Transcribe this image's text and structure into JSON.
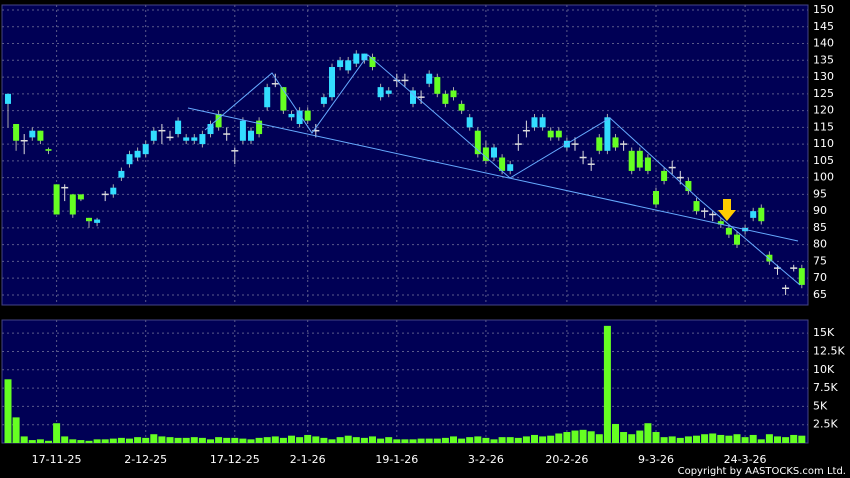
{
  "chart_data": [
    {
      "type": "candlestick",
      "open": [
        122,
        116,
        111,
        112,
        114,
        108.5,
        98,
        97,
        95,
        95,
        88,
        86.5,
        95,
        95,
        100,
        104,
        106,
        107,
        111,
        114,
        112,
        113,
        111,
        111,
        110,
        113,
        119,
        113,
        108,
        111,
        111,
        117,
        121,
        128,
        127,
        118,
        116,
        120,
        114,
        122,
        124,
        133,
        132,
        134,
        135,
        136,
        124,
        125,
        129,
        129,
        122,
        124,
        128,
        130,
        125,
        126,
        122,
        115,
        114,
        109,
        106,
        106,
        102,
        110,
        114,
        115,
        115,
        114,
        114,
        109,
        110,
        106,
        104,
        112,
        108,
        112,
        110,
        108,
        108,
        106,
        96,
        102,
        103,
        100,
        99,
        93,
        90,
        89,
        87,
        85,
        83,
        84,
        88,
        91,
        77,
        73,
        67,
        73,
        73
      ],
      "high": [
        125,
        116,
        113,
        115,
        114,
        109,
        98,
        98,
        95,
        95,
        88,
        88,
        96,
        98,
        103,
        108,
        109,
        111,
        115,
        116,
        114,
        118,
        113,
        113,
        114,
        117,
        120,
        115,
        109,
        118,
        115,
        118,
        128,
        131,
        127,
        120,
        121,
        121,
        116,
        125,
        134,
        136,
        136,
        138,
        137,
        137,
        128,
        127,
        131,
        131,
        127,
        126,
        132,
        131,
        126,
        127,
        123,
        119,
        115,
        111,
        110,
        107,
        105,
        113,
        117,
        119,
        119,
        115,
        115,
        112,
        112,
        108,
        106,
        113,
        119,
        113,
        111,
        109,
        109,
        107,
        97,
        103,
        105,
        102,
        100,
        94,
        91,
        90,
        88,
        86,
        84,
        86,
        91,
        92,
        78,
        74,
        68,
        74,
        74
      ],
      "low": [
        115,
        108,
        107,
        111,
        110,
        107,
        89,
        93,
        88,
        93,
        85,
        85.5,
        93,
        94,
        99,
        103,
        105,
        106,
        110,
        110,
        111,
        112,
        110,
        110,
        109,
        112,
        114,
        111,
        104,
        110,
        110,
        112,
        120,
        127,
        119,
        117,
        115,
        116,
        112,
        121,
        123,
        132,
        131,
        133,
        134,
        132,
        123,
        124,
        127,
        127,
        121,
        122,
        127,
        124,
        121,
        123,
        119,
        114,
        106,
        104,
        105,
        101,
        101,
        108,
        112,
        114,
        114,
        111,
        111,
        108,
        108,
        104,
        102,
        107,
        107,
        108,
        108,
        101,
        102,
        101,
        91,
        98,
        101,
        98,
        95,
        89,
        88,
        87,
        85,
        82,
        79,
        83,
        87,
        86,
        74,
        71,
        65,
        72,
        67
      ],
      "close": [
        125,
        111,
        111,
        114,
        111,
        108,
        89,
        97,
        89,
        93.5,
        87,
        87.5,
        95,
        97,
        102,
        107,
        108,
        110,
        114,
        114,
        112,
        117,
        112,
        112,
        113,
        116,
        115,
        113,
        108,
        117,
        114,
        113,
        127,
        128,
        120,
        119,
        120,
        117,
        114,
        124,
        133,
        135,
        135,
        137,
        137,
        133,
        127,
        126,
        129,
        129,
        126,
        124,
        131,
        125,
        122,
        124,
        120,
        118,
        107,
        105,
        109,
        102,
        104,
        110,
        114,
        118,
        118,
        112,
        112,
        111,
        110,
        106,
        104,
        108,
        118,
        109,
        110,
        102,
        103,
        102,
        92,
        99,
        103,
        100,
        96,
        90,
        90,
        89,
        86,
        83,
        80,
        85,
        90,
        87,
        75,
        73,
        67,
        73,
        68
      ],
      "up_color": "#33ddff",
      "down_color": "#66ff22",
      "doji_color": "#dddddd",
      "ylim": [
        62,
        151.5
      ],
      "yticks": [
        65,
        70,
        75,
        80,
        85,
        90,
        95,
        100,
        105,
        110,
        115,
        120,
        125,
        130,
        135,
        140,
        145,
        150
      ],
      "grid": true
    },
    {
      "type": "bar",
      "categories": [
        null,
        null,
        null,
        null,
        null,
        null,
        "17-11-25",
        null,
        null,
        null,
        null,
        null,
        null,
        null,
        null,
        null,
        null,
        "2-12-25",
        null,
        null,
        null,
        null,
        null,
        null,
        null,
        null,
        null,
        null,
        "17-12-25",
        null,
        null,
        null,
        null,
        null,
        null,
        null,
        null,
        "2-1-26",
        null,
        null,
        null,
        null,
        null,
        null,
        null,
        null,
        null,
        null,
        "19-1-26",
        null,
        null,
        null,
        null,
        null,
        null,
        null,
        null,
        null,
        null,
        "3-2-26",
        null,
        null,
        null,
        null,
        null,
        null,
        null,
        null,
        null,
        "20-2-26",
        null,
        null,
        null,
        null,
        null,
        null,
        null,
        null,
        null,
        null,
        "9-3-26",
        null,
        null,
        null,
        null,
        null,
        null,
        null,
        null,
        null,
        null,
        "24-3-26",
        null,
        null,
        null,
        null,
        null,
        null,
        null
      ],
      "values": [
        8700,
        3500,
        900,
        400,
        500,
        300,
        2700,
        900,
        500,
        400,
        300,
        500,
        500,
        600,
        700,
        600,
        800,
        700,
        1200,
        900,
        800,
        700,
        700,
        800,
        700,
        500,
        800,
        700,
        700,
        600,
        500,
        700,
        800,
        900,
        700,
        1000,
        800,
        1100,
        900,
        700,
        500,
        800,
        1000,
        800,
        700,
        900,
        600,
        800,
        500,
        500,
        500,
        600,
        600,
        600,
        700,
        900,
        600,
        800,
        900,
        700,
        500,
        800,
        800,
        700,
        900,
        1100,
        900,
        1000,
        1300,
        1500,
        1700,
        1800,
        1600,
        1200,
        16000,
        2600,
        1500,
        1200,
        1700,
        2700,
        1500,
        800,
        900,
        700,
        900,
        1000,
        1200,
        1300,
        1100,
        1000,
        1200,
        800,
        1100,
        500,
        1200,
        900,
        800,
        1100,
        1000
      ],
      "color": "#66ff22",
      "ylim": [
        0,
        16800
      ],
      "yticks": [
        {
          "value": 2500,
          "label": "2.5K"
        },
        {
          "value": 5000,
          "label": "5K"
        },
        {
          "value": 7500,
          "label": "7.5K"
        },
        {
          "value": 10000,
          "label": "10K"
        },
        {
          "value": 12500,
          "label": "12.5K"
        },
        {
          "value": 15000,
          "label": "15K"
        }
      ],
      "grid": true,
      "footer": "Copyright by AASTOCKS.com Ltd."
    }
  ]
}
